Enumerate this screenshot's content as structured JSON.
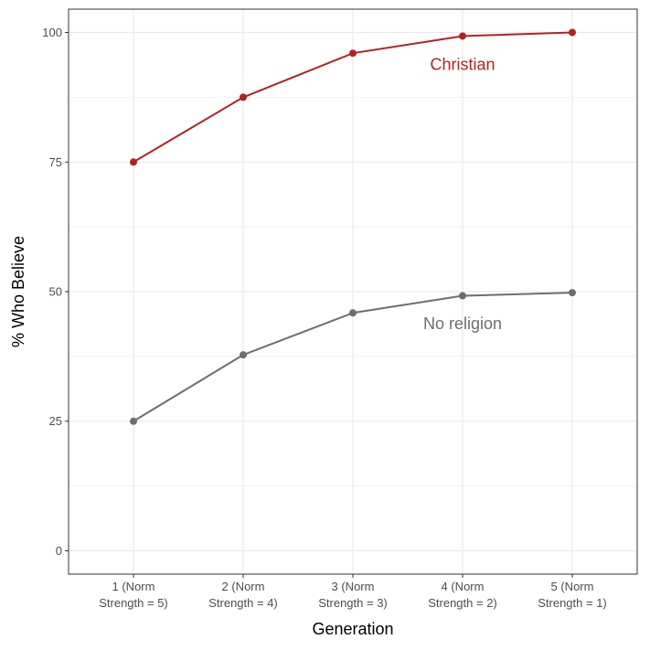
{
  "chart_data": {
    "type": "line",
    "xlabel": "Generation",
    "ylabel": "% Who Believe",
    "categories": [
      [
        "1 (Norm",
        "Strength = 5)"
      ],
      [
        "2 (Norm",
        "Strength = 4)"
      ],
      [
        "3 (Norm",
        "Strength = 3)"
      ],
      [
        "4 (Norm",
        "Strength = 2)"
      ],
      [
        "5 (Norm",
        "Strength = 1)"
      ]
    ],
    "y_ticks": [
      "0",
      "25",
      "50",
      "75",
      "100"
    ],
    "ylim": [
      -4.5,
      104.5
    ],
    "grid": true,
    "legend": "none (direct labels)",
    "series": [
      {
        "name": "Christian",
        "color": "#b22222",
        "values": [
          75,
          87.5,
          96,
          99.3,
          100
        ],
        "label_at": {
          "x": 4,
          "y": 93.8
        }
      },
      {
        "name": "No religion",
        "color": "#6e6e6e",
        "values": [
          25,
          37.8,
          45.9,
          49.2,
          49.8
        ],
        "label_at": {
          "x": 4,
          "y": 43.8
        }
      }
    ]
  }
}
